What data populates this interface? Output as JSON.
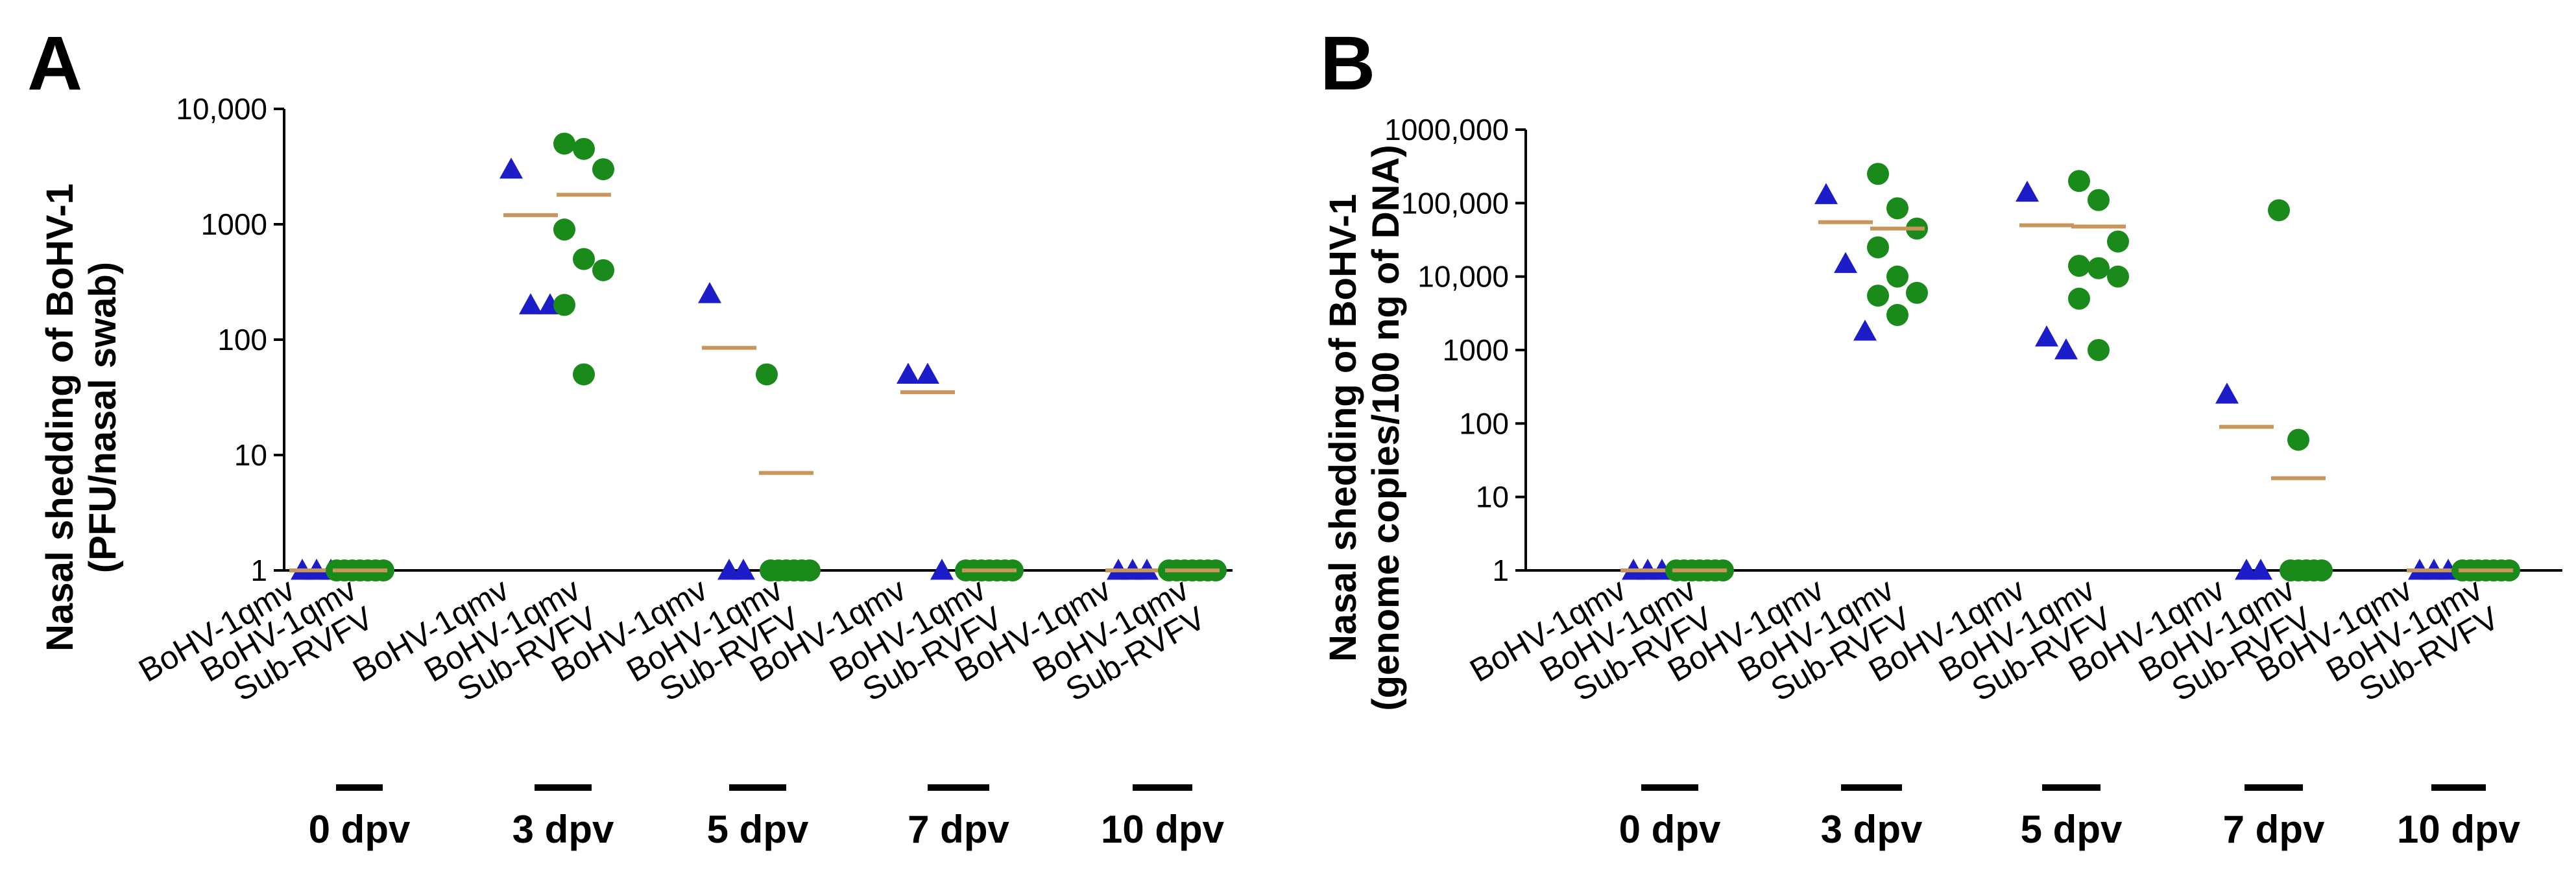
{
  "chart_data": [
    {
      "type": "scatter",
      "panel_label": "A",
      "ylabel": [
        "Nasal shedding of BoHV-1",
        "(PFU/nasal swab)"
      ],
      "yscale": "log",
      "ylim": [
        1,
        10000
      ],
      "yticks": [
        1,
        10,
        100,
        1000,
        10000
      ],
      "ytick_labels": [
        "1",
        "10",
        "100",
        "1000",
        "10,000"
      ],
      "categories": [
        "BoHV-1qmv",
        "BoHV-1qmv Sub-RVFV"
      ],
      "groups": [
        "0 dpv",
        "3 dpv",
        "5 dpv",
        "7 dpv",
        "10 dpv"
      ],
      "series": [
        {
          "name": "BoHV-1qmv",
          "marker": "triangle",
          "color": "#1c1cc8",
          "values": [
            [
              1,
              1,
              1
            ],
            [
              3000,
              200,
              200
            ],
            [
              250,
              1,
              1
            ],
            [
              50,
              50,
              1
            ],
            [
              1,
              1,
              1
            ]
          ],
          "medians": [
            1,
            1200,
            85,
            35,
            1
          ]
        },
        {
          "name": "BoHV-1qmv Sub-RVFV",
          "marker": "circle",
          "color": "#1a8a1a",
          "values": [
            [
              1,
              1,
              1,
              1,
              1,
              1,
              1
            ],
            [
              5000,
              4500,
              3000,
              900,
              500,
              400,
              200,
              50
            ],
            [
              50,
              1,
              1,
              1,
              1,
              1,
              1
            ],
            [
              1,
              1,
              1,
              1,
              1,
              1,
              1
            ],
            [
              1,
              1,
              1,
              1,
              1,
              1,
              1
            ]
          ],
          "medians": [
            1,
            1800,
            7,
            1,
            1
          ]
        }
      ],
      "median_color": "#c8965a"
    },
    {
      "type": "scatter",
      "panel_label": "B",
      "ylabel": [
        "Nasal shedding of BoHV-1",
        "(genome copies/100 ng of DNA)"
      ],
      "yscale": "log",
      "ylim": [
        1,
        1000000
      ],
      "yticks": [
        1,
        10,
        100,
        1000,
        10000,
        100000,
        1000000
      ],
      "ytick_labels": [
        "1",
        "10",
        "100",
        "1000",
        "10,000",
        "100,000",
        "1000,000"
      ],
      "categories": [
        "BoHV-1qmv",
        "BoHV-1qmv Sub-RVFV"
      ],
      "groups": [
        "0 dpv",
        "3 dpv",
        "5 dpv",
        "7 dpv",
        "10 dpv"
      ],
      "series": [
        {
          "name": "BoHV-1qmv",
          "marker": "triangle",
          "color": "#1c1cc8",
          "values": [
            [
              1,
              1,
              1
            ],
            [
              130000,
              15000,
              1800
            ],
            [
              140000,
              1500,
              1000
            ],
            [
              250,
              1,
              1
            ],
            [
              1,
              1,
              1
            ]
          ],
          "medians": [
            1,
            55000,
            50000,
            90,
            1
          ]
        },
        {
          "name": "BoHV-1qmv Sub-RVFV",
          "marker": "circle",
          "color": "#1a8a1a",
          "values": [
            [
              1,
              1,
              1,
              1,
              1,
              1,
              1
            ],
            [
              250000,
              85000,
              45000,
              25000,
              10000,
              6000,
              5500,
              3000
            ],
            [
              200000,
              110000,
              30000,
              14000,
              13000,
              10000,
              5000,
              1000
            ],
            [
              80000,
              60,
              1,
              1,
              1,
              1,
              1
            ],
            [
              1,
              1,
              1,
              1,
              1,
              1,
              1
            ]
          ],
          "medians": [
            1,
            45000,
            48000,
            18,
            1
          ]
        }
      ],
      "median_color": "#c8965a"
    }
  ]
}
